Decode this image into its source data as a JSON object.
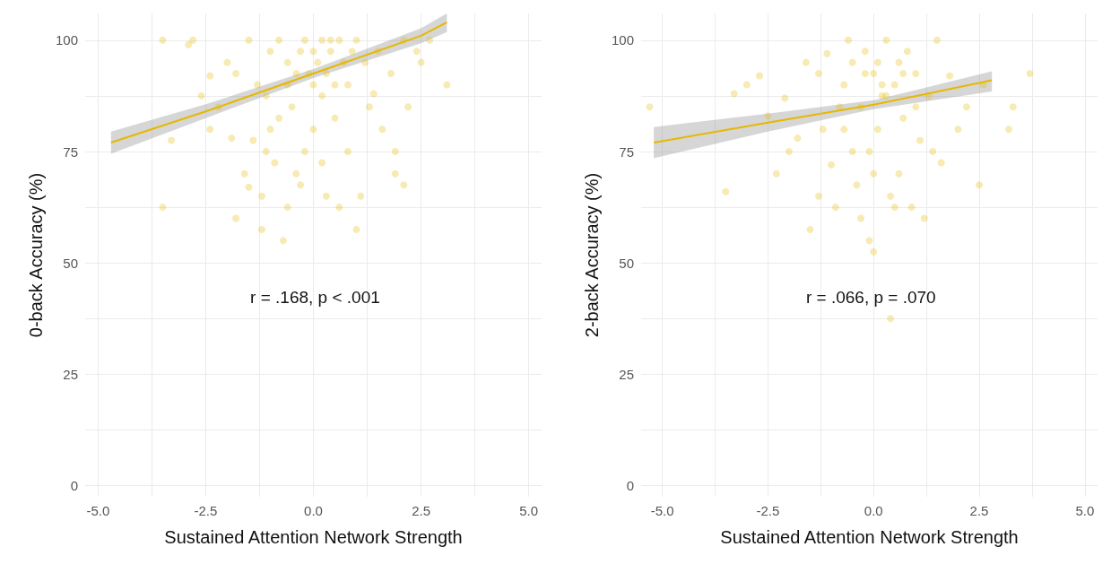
{
  "chart_data": [
    {
      "type": "scatter",
      "xlabel": "Sustained Attention Network Strength",
      "ylabel": "0-back Accuracy (%)",
      "annotations": [
        "r = .168, p < .001"
      ],
      "xlim": [
        -5.3,
        5.3
      ],
      "ylim": [
        -2.5,
        106
      ],
      "xticks": [
        {
          "value": -5,
          "label": "-5.0"
        },
        {
          "value": -3.75,
          "label": null
        },
        {
          "value": -2.5,
          "label": "-2.5"
        },
        {
          "value": -1.25,
          "label": null
        },
        {
          "value": 0,
          "label": "0.0"
        },
        {
          "value": 1.25,
          "label": null
        },
        {
          "value": 2.5,
          "label": "2.5"
        },
        {
          "value": 3.75,
          "label": null
        },
        {
          "value": 5,
          "label": "5.0"
        }
      ],
      "yticks": [
        0,
        {
          "value": 12.5,
          "label": null
        },
        25,
        {
          "value": 37.5,
          "label": null
        },
        50,
        {
          "value": 62.5,
          "label": null
        },
        75,
        {
          "value": 87.5,
          "label": null
        },
        100
      ],
      "grid": true,
      "series": [
        {
          "marker": "circle",
          "color": "#e6b800",
          "x": [
            -3.5,
            -3.5,
            -3.3,
            -2.9,
            -2.8,
            -2.6,
            -2.4,
            -2.2,
            -1.9,
            -1.8,
            -1.6,
            -1.5,
            -1.2,
            -1.2,
            -1.1,
            -1.0,
            -0.9,
            -0.7,
            -0.6,
            -0.4,
            -0.3,
            -0.2,
            0.0,
            0.2,
            0.3,
            0.5,
            0.6,
            0.8,
            1.0,
            1.1,
            1.3,
            1.6,
            1.9,
            1.9,
            2.1,
            2.2,
            2.1,
            2.5,
            2.7,
            3.1,
            1.8,
            1.5,
            1.2,
            -2.0,
            -1.8,
            -1.5,
            -1.3,
            -1.0,
            -0.8,
            -0.6,
            -0.4,
            -0.2,
            0,
            0.1,
            0.2,
            0.3,
            0.4,
            0.6,
            0.7,
            0.8,
            0.9,
            1.0,
            -1.1,
            -0.5,
            0.2,
            0.5,
            -0.8,
            -2.4,
            2.4,
            -1.4,
            0.0,
            -0.1,
            0.4,
            -0.3,
            1.4,
            -0.6
          ],
          "values": [
            100,
            62.5,
            77.5,
            99,
            100,
            87.5,
            80,
            85,
            78,
            60,
            70,
            67,
            65,
            57.5,
            75,
            80,
            72.5,
            55,
            62.5,
            70,
            67.5,
            75,
            80,
            72.5,
            65,
            90,
            62.5,
            75,
            57.5,
            65,
            85,
            80,
            75,
            70,
            67.5,
            85,
            100,
            95,
            100,
            90,
            92.5,
            97.5,
            95,
            95,
            92.5,
            100,
            90,
            97.5,
            100,
            95,
            92.5,
            100,
            97.5,
            95,
            100,
            92.5,
            97.5,
            100,
            95,
            90,
            97.5,
            100,
            87.5,
            85,
            87.5,
            82.5,
            82.5,
            92,
            97.5,
            77.5,
            90,
            92.5,
            100,
            97.5,
            88,
            90
          ]
        },
        {
          "type": "line",
          "color": "#e6b800",
          "x": [
            -4.7,
            -2.5,
            0,
            2.5,
            3.1
          ],
          "values": [
            77,
            84,
            92.5,
            101,
            104
          ],
          "lower": [
            74.5,
            82.5,
            91.5,
            99.3,
            101.8
          ],
          "upper": [
            79.5,
            85.6,
            93.5,
            102.7,
            106
          ]
        }
      ]
    },
    {
      "type": "scatter",
      "xlabel": "Sustained Attention Network Strength",
      "ylabel": "2-back Accuracy (%)",
      "annotations": [
        "r = .066, p = .070"
      ],
      "xlim": [
        -5.5,
        5.3
      ],
      "ylim": [
        -2.5,
        106
      ],
      "xticks": [
        {
          "value": -5,
          "label": "-5.0"
        },
        {
          "value": -3.75,
          "label": null
        },
        {
          "value": -2.5,
          "label": "-2.5"
        },
        {
          "value": -1.25,
          "label": null
        },
        {
          "value": 0,
          "label": "0.0"
        },
        {
          "value": 1.25,
          "label": null
        },
        {
          "value": 2.5,
          "label": "2.5"
        },
        {
          "value": 3.75,
          "label": null
        },
        {
          "value": 5,
          "label": "5.0"
        }
      ],
      "yticks": [
        0,
        {
          "value": 12.5,
          "label": null
        },
        25,
        {
          "value": 37.5,
          "label": null
        },
        50,
        {
          "value": 62.5,
          "label": null
        },
        75,
        {
          "value": 87.5,
          "label": null
        },
        100
      ],
      "grid": true,
      "series": [
        {
          "marker": "circle",
          "color": "#e6b800",
          "x": [
            -5.3,
            -3.5,
            -3.3,
            -3.0,
            -2.7,
            -2.5,
            -2.3,
            -2.0,
            -1.8,
            -1.6,
            -1.5,
            -1.3,
            -1.2,
            -1.1,
            -1.0,
            -0.9,
            -0.8,
            -0.7,
            -0.6,
            -0.5,
            -0.4,
            -0.3,
            -0.2,
            -0.1,
            0.0,
            0.1,
            0.2,
            0.3,
            0.4,
            0.4,
            0.5,
            0.6,
            0.7,
            0.8,
            0.9,
            1.0,
            1.1,
            1.2,
            1.3,
            1.5,
            1.6,
            1.8,
            2.0,
            2.2,
            2.5,
            2.6,
            3.2,
            3.3,
            3.7,
            -0.5,
            0,
            0.2,
            -0.3,
            0.6,
            -1.3,
            0.1,
            -0.1,
            1.0,
            -0.7,
            0.3,
            -0.2,
            0.7,
            -2.1,
            1.4,
            0.0,
            0.5
          ],
          "values": [
            85,
            66,
            88,
            90,
            92,
            83,
            70,
            75,
            78,
            95,
            57.5,
            65,
            80,
            97,
            72,
            62.5,
            85,
            90,
            100,
            75,
            67.5,
            60,
            92.5,
            55,
            52.5,
            95,
            87.5,
            100,
            37.5,
            65,
            90,
            70,
            82.5,
            97.5,
            62.5,
            92.5,
            77.5,
            60,
            87.5,
            100,
            72.5,
            92,
            80,
            85,
            67.5,
            90,
            80,
            85,
            92.5,
            95,
            92.5,
            90,
            85,
            95,
            92.5,
            80,
            75,
            85,
            80,
            87.5,
            97.5,
            92.5,
            87,
            75,
            70,
            62.5
          ]
        },
        {
          "type": "line",
          "color": "#e6b800",
          "x": [
            -5.2,
            -2.5,
            0,
            2.8
          ],
          "values": [
            77,
            81.5,
            85.5,
            91
          ],
          "lower": [
            73.5,
            79.5,
            84.5,
            88.5
          ],
          "upper": [
            80.5,
            83.5,
            86.5,
            93
          ]
        }
      ]
    }
  ]
}
